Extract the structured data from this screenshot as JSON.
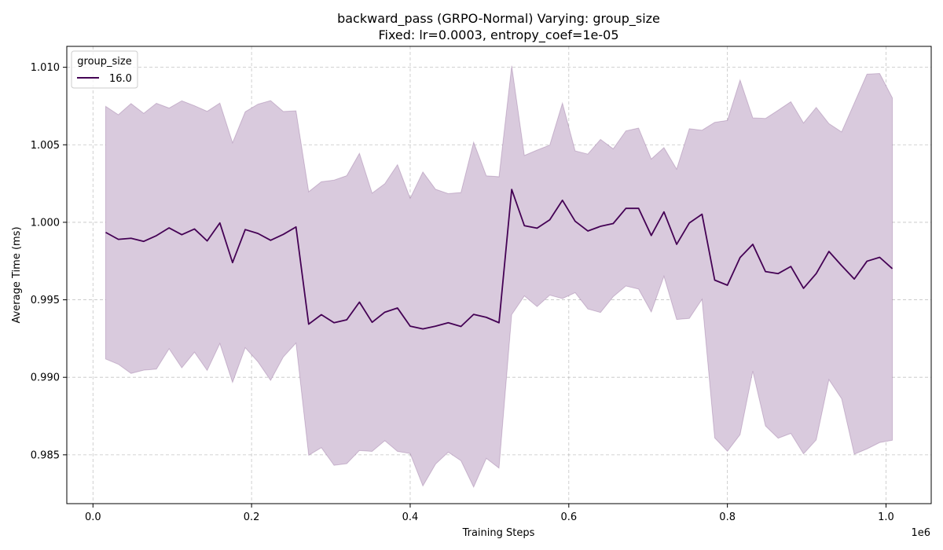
{
  "chart_data": {
    "type": "line",
    "title": "backward_pass (GRPO-Normal) Varying: group_size",
    "subtitle": "Fixed: lr=0.0003, entropy_coef=1e-05",
    "xlabel": "Training Steps",
    "ylabel": "Average Time (ms)",
    "x_offset_label": "1e6",
    "xlim": [
      -0.033,
      1.057
    ],
    "ylim": [
      0.98185,
      1.01135
    ],
    "x_ticks": [
      0.0,
      0.2,
      0.4,
      0.6,
      0.8,
      1.0
    ],
    "x_tick_labels": [
      "0.0",
      "0.2",
      "0.4",
      "0.6",
      "0.8",
      "1.0"
    ],
    "y_ticks": [
      0.985,
      0.99,
      0.995,
      1.0,
      1.005,
      1.01
    ],
    "y_tick_labels": [
      "0.985",
      "0.990",
      "0.995",
      "1.000",
      "1.005",
      "1.010"
    ],
    "grid": true,
    "legend": {
      "title": "group_size",
      "placement": "top-left"
    },
    "series": [
      {
        "name": "16.0",
        "color": "#440154",
        "fill_color": "#d9cadd",
        "x": [
          0.016,
          0.032,
          0.048,
          0.064,
          0.08,
          0.096,
          0.112,
          0.128,
          0.144,
          0.16,
          0.176,
          0.192,
          0.208,
          0.224,
          0.24,
          0.256,
          0.272,
          0.288,
          0.304,
          0.32,
          0.336,
          0.352,
          0.368,
          0.384,
          0.4,
          0.416,
          0.432,
          0.448,
          0.464,
          0.48,
          0.496,
          0.512,
          0.528,
          0.544,
          0.56,
          0.576,
          0.592,
          0.608,
          0.624,
          0.64,
          0.656,
          0.672,
          0.688,
          0.704,
          0.72,
          0.736,
          0.752,
          0.768,
          0.784,
          0.8,
          0.816,
          0.832,
          0.848,
          0.864,
          0.88,
          0.896,
          0.912,
          0.928,
          0.944,
          0.96,
          0.976,
          0.992,
          1.008
        ],
        "mean": [
          0.99935,
          0.9989,
          0.99897,
          0.99877,
          0.99914,
          0.99964,
          0.9992,
          0.99957,
          0.9988,
          0.99996,
          0.9974,
          0.99953,
          0.99928,
          0.99884,
          0.99922,
          0.9997,
          0.99343,
          0.99404,
          0.99352,
          0.99371,
          0.99485,
          0.99355,
          0.9942,
          0.99447,
          0.9933,
          0.99312,
          0.9933,
          0.99352,
          0.99328,
          0.99406,
          0.99387,
          0.99352,
          1.00212,
          0.99978,
          0.99962,
          1.00016,
          1.00142,
          1.00007,
          0.99944,
          0.99974,
          0.99992,
          1.0009,
          1.0009,
          0.99915,
          1.00067,
          0.99858,
          0.99996,
          1.00052,
          0.99627,
          0.99594,
          0.99773,
          0.99858,
          0.99682,
          0.99669,
          0.99715,
          0.99574,
          0.99669,
          0.99812,
          0.99721,
          0.99634,
          0.99749,
          0.99774,
          0.99701
        ],
        "upper": [
          1.00748,
          1.00694,
          1.00766,
          1.00703,
          1.00768,
          1.00737,
          1.00784,
          1.00752,
          1.00716,
          1.00769,
          1.00513,
          1.00713,
          1.00762,
          1.00785,
          1.00715,
          1.00719,
          1.00197,
          1.00262,
          1.00272,
          1.00301,
          1.00445,
          1.00188,
          1.00249,
          1.00372,
          1.00155,
          1.00325,
          1.00213,
          1.00185,
          1.00192,
          1.00517,
          1.003,
          1.00294,
          1.0101,
          1.00431,
          1.00466,
          1.00498,
          1.00769,
          1.00461,
          1.0044,
          1.00535,
          1.00474,
          1.0059,
          1.00608,
          1.00408,
          1.00482,
          1.00343,
          1.00604,
          1.00594,
          1.00645,
          1.00657,
          1.00918,
          1.00674,
          1.0067,
          1.00723,
          1.00778,
          1.00641,
          1.00741,
          1.00637,
          1.00583,
          1.00769,
          1.00956,
          1.0096,
          1.00803
        ],
        "lower": [
          0.99118,
          0.99084,
          0.99025,
          0.99046,
          0.99053,
          0.99184,
          0.99061,
          0.99162,
          0.99044,
          0.99218,
          0.98967,
          0.99191,
          0.991,
          0.9898,
          0.99131,
          0.99221,
          0.98497,
          0.98546,
          0.98432,
          0.98443,
          0.98528,
          0.98522,
          0.98591,
          0.98522,
          0.98508,
          0.98299,
          0.9844,
          0.98517,
          0.98462,
          0.98292,
          0.98477,
          0.98414,
          0.99404,
          0.99525,
          0.99456,
          0.9953,
          0.99508,
          0.99546,
          0.99441,
          0.99418,
          0.9952,
          0.99589,
          0.99569,
          0.99421,
          0.99652,
          0.99373,
          0.9938,
          0.99503,
          0.98609,
          0.98523,
          0.9863,
          0.9904,
          0.98686,
          0.98607,
          0.98638,
          0.98506,
          0.98596,
          0.98985,
          0.98862,
          0.98504,
          0.98538,
          0.98579,
          0.98594
        ]
      }
    ]
  }
}
